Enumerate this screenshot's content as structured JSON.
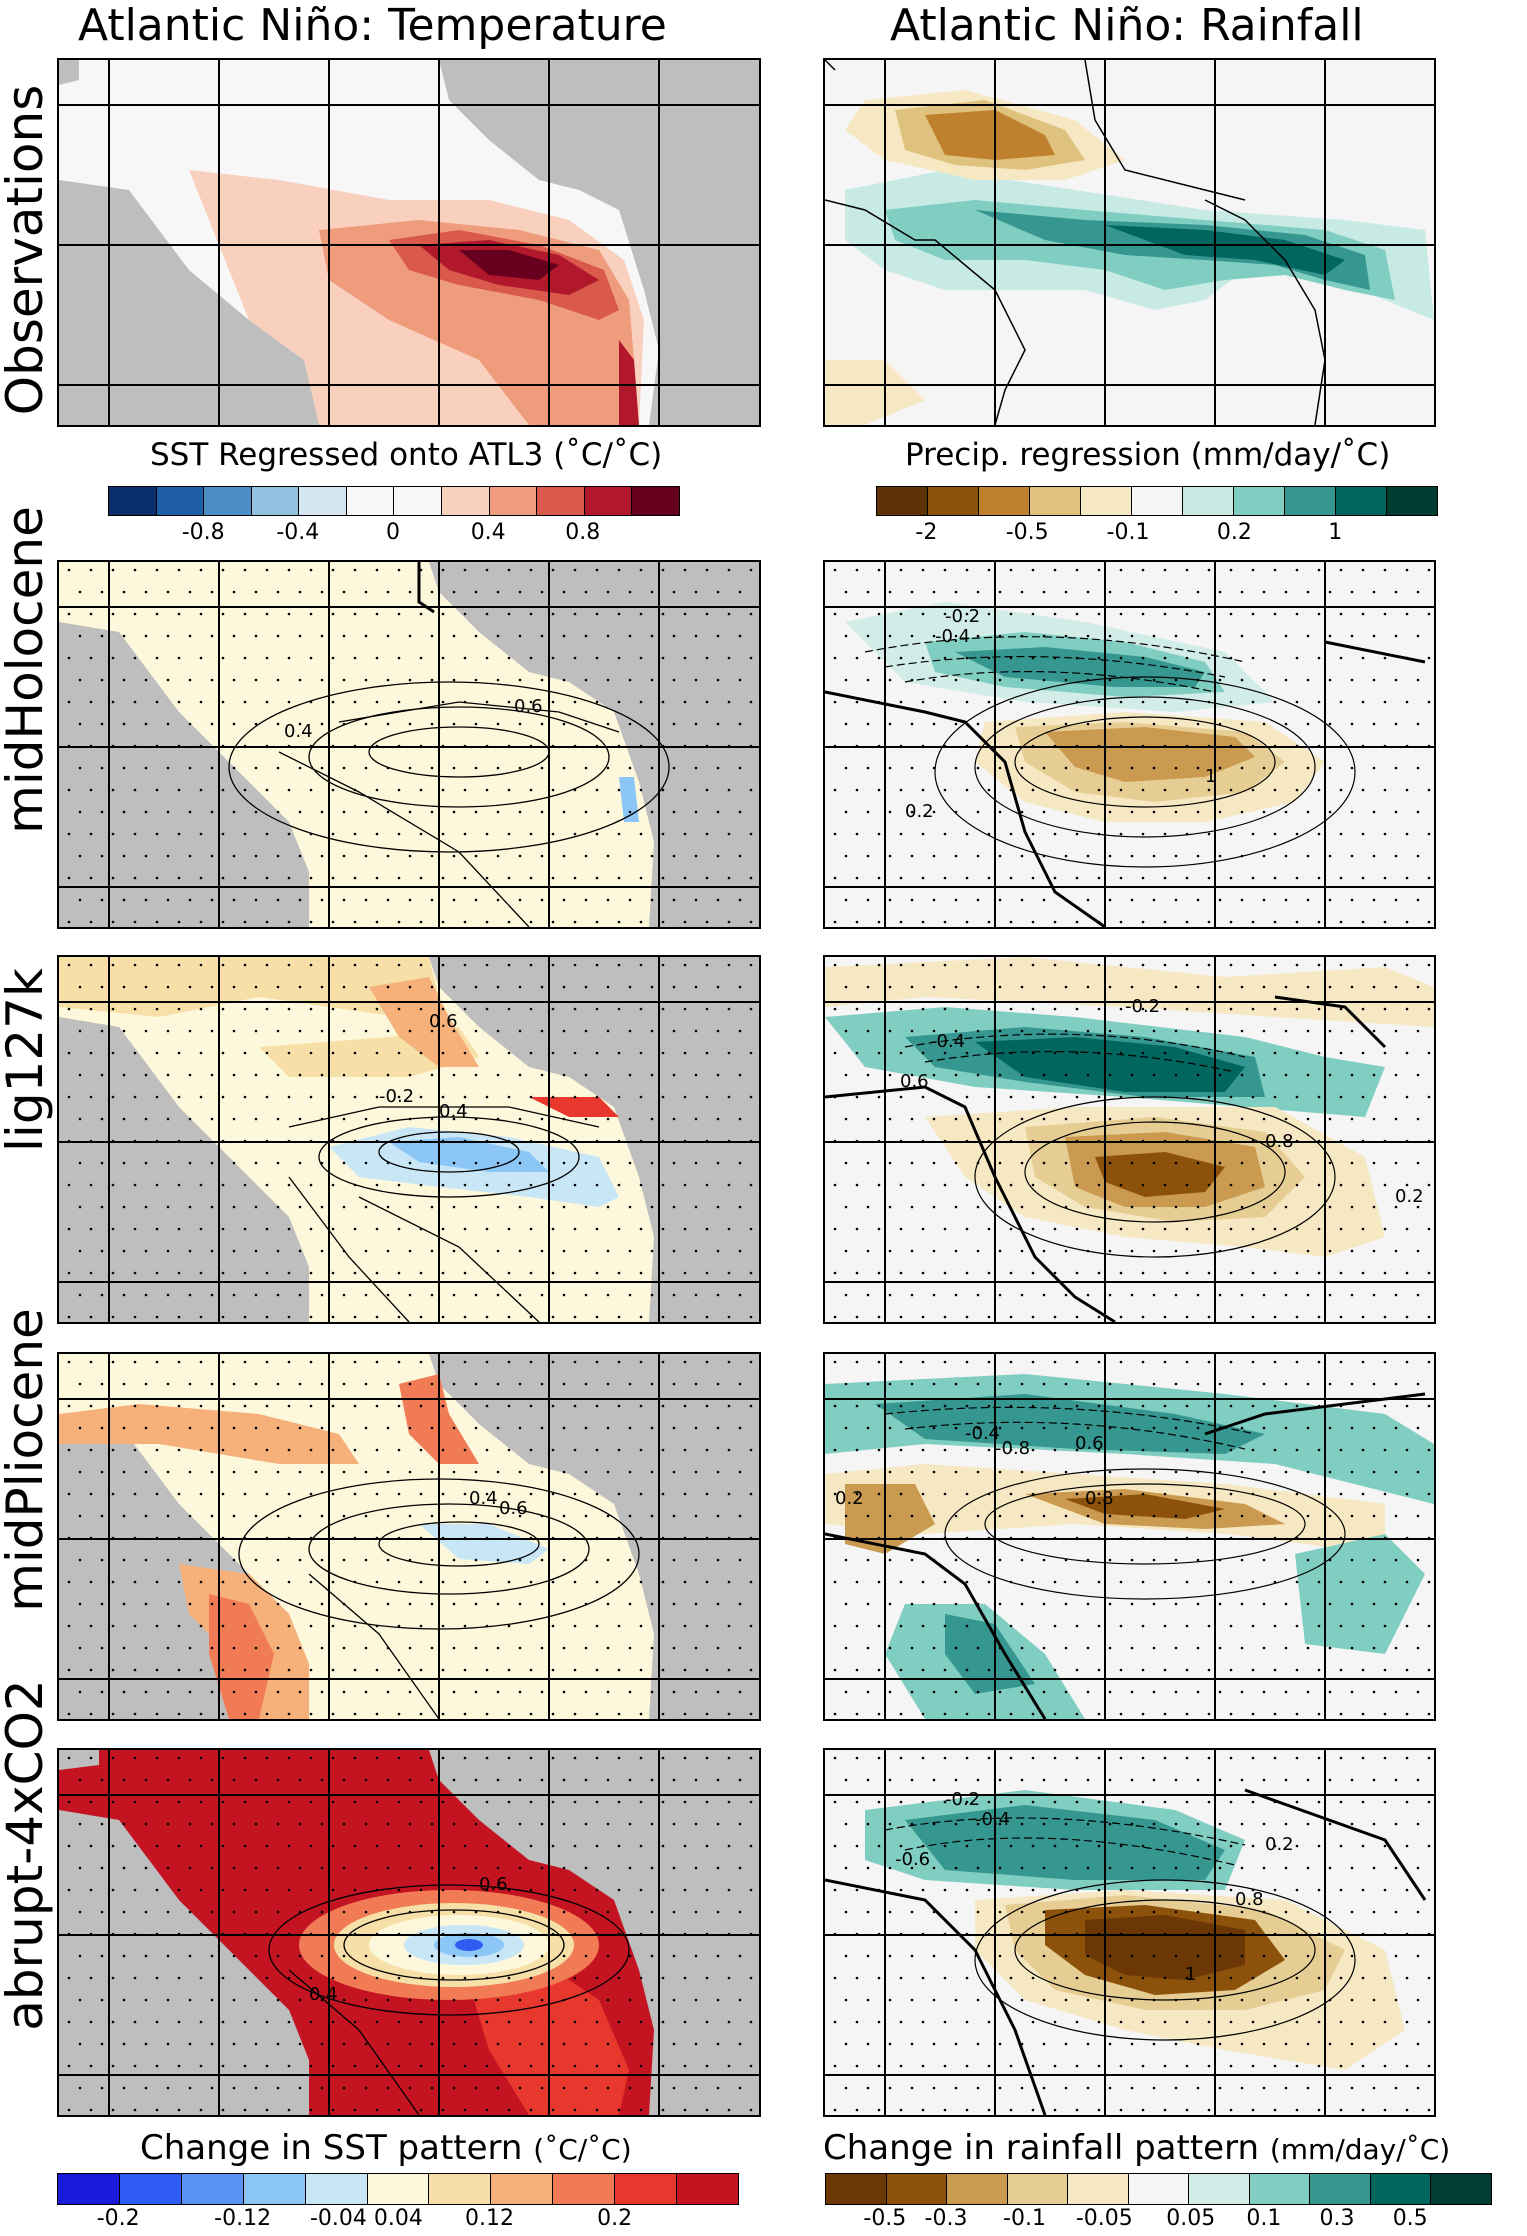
{
  "titles": {
    "temperature": "Atlantic Niño: Temperature",
    "rainfall": "Atlantic Niño: Rainfall"
  },
  "rows": [
    {
      "label": "Observations"
    },
    {
      "label": "midHolocene"
    },
    {
      "label": "lig127k"
    },
    {
      "label": "midPliocene"
    },
    {
      "label": "abrupt-4xCO2"
    }
  ],
  "colorbars": {
    "sst_obs": {
      "title": "SST Regressed onto ATL3 (˚C/˚C)",
      "colors": [
        "#0a2e6b",
        "#1f5fa8",
        "#4b8ec8",
        "#92c2e0",
        "#d4e6f2",
        "#f7f7f7",
        "#f7f7f7",
        "#f9d0bd",
        "#ef9c7c",
        "#d95a4d",
        "#b2182b",
        "#67001f"
      ],
      "ticks": [
        "-0.8",
        "-0.4",
        "0",
        "0.4",
        "0.8"
      ]
    },
    "precip_obs": {
      "title": "Precip. regression (mm/day/˚C)",
      "colors": [
        "#5e3207",
        "#8c510a",
        "#bf812d",
        "#dfc27d",
        "#f6e8c3",
        "#f5f5f5",
        "#c7eae5",
        "#80cdc1",
        "#35978f",
        "#01665e",
        "#003c30"
      ],
      "ticks": [
        "-2",
        "-0.5",
        "-0.1",
        "0.2",
        "1"
      ]
    },
    "sst_change": {
      "title": "Change in SST pattern",
      "units": "(˚C/˚C)",
      "colors": [
        "#1a1adb",
        "#2f5cf2",
        "#5a92f5",
        "#8cc6f7",
        "#c8e6f5",
        "#fdf8dc",
        "#f6e0a8",
        "#f6b07a",
        "#f07b55",
        "#e8382d",
        "#c41422"
      ],
      "ticks": [
        "-0.2",
        "-0.12",
        "-0.04 0.04",
        "0.12",
        "0.2"
      ]
    },
    "rain_change": {
      "title": "Change in rainfall pattern",
      "units": "(mm/day/˚C)",
      "colors": [
        "#6b3805",
        "#8c510a",
        "#c99a4f",
        "#e6cd93",
        "#f6e8c3",
        "#f5f5f5",
        "#d2ede8",
        "#80cdc1",
        "#35978f",
        "#01665e",
        "#013d35"
      ],
      "ticks": [
        "-0.5",
        "-0.3",
        "-0.1",
        "-0.05",
        "0.05",
        "0.1",
        "0.3",
        "0.5"
      ]
    }
  },
  "colors": {
    "land": "#bebebe",
    "ocean_bg": "#f4f4f4"
  }
}
